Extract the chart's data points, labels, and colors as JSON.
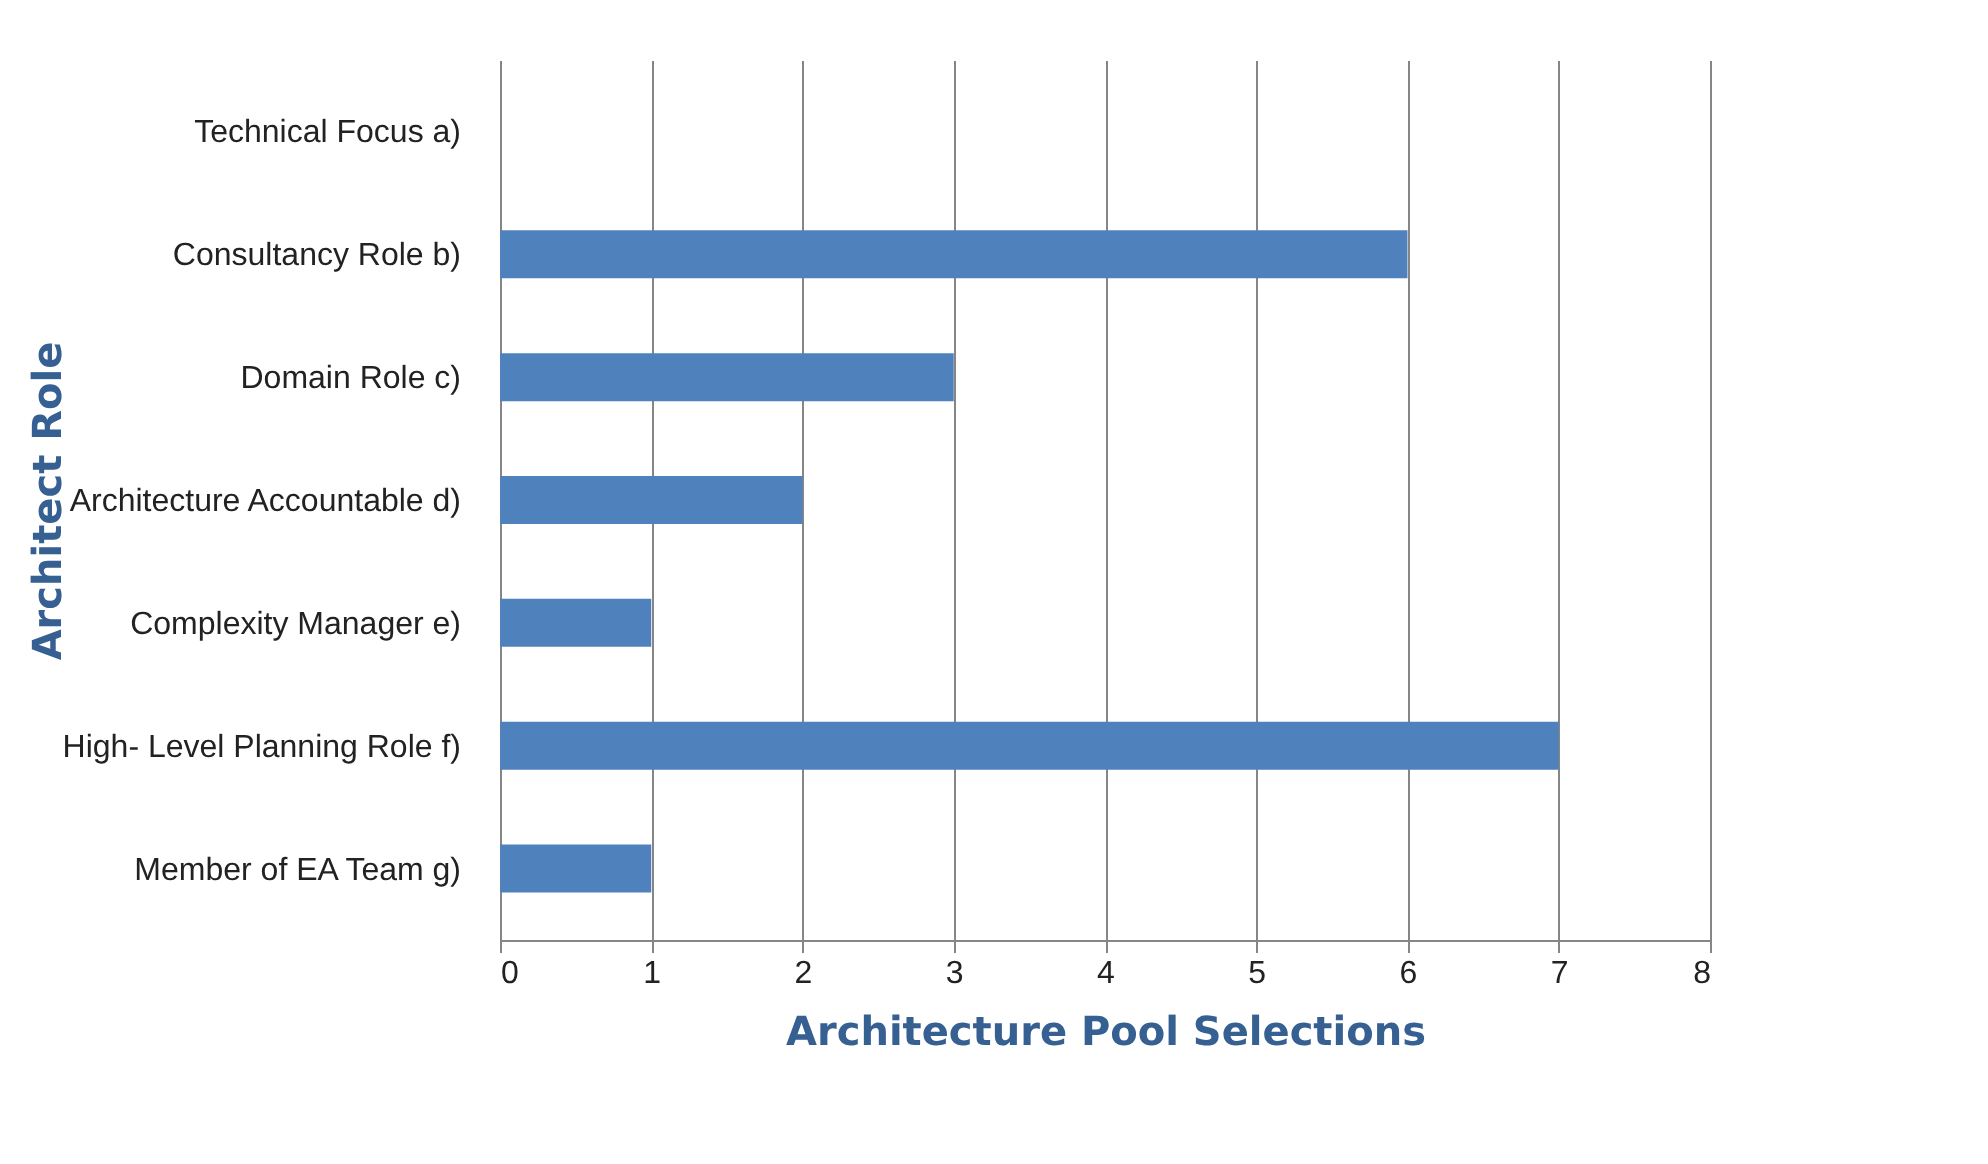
{
  "chart_data": {
    "type": "bar",
    "orientation": "horizontal",
    "xlabel": "Architecture Pool Selections",
    "ylabel": "Architect Role",
    "categories": [
      "Technical Focus a)",
      "Consultancy Role b)",
      "Domain Role c)",
      "Architecture Accountable d)",
      "Complexity Manager e)",
      "High- Level Planning Role f)",
      "Member of EA Team g)"
    ],
    "values": [
      0,
      6,
      3,
      2,
      1,
      7,
      1
    ],
    "color": "#4f81bd",
    "xlim": [
      0,
      8
    ],
    "xticks": [
      0,
      1,
      2,
      3,
      4,
      5,
      6,
      7,
      8
    ],
    "grid": "x"
  }
}
